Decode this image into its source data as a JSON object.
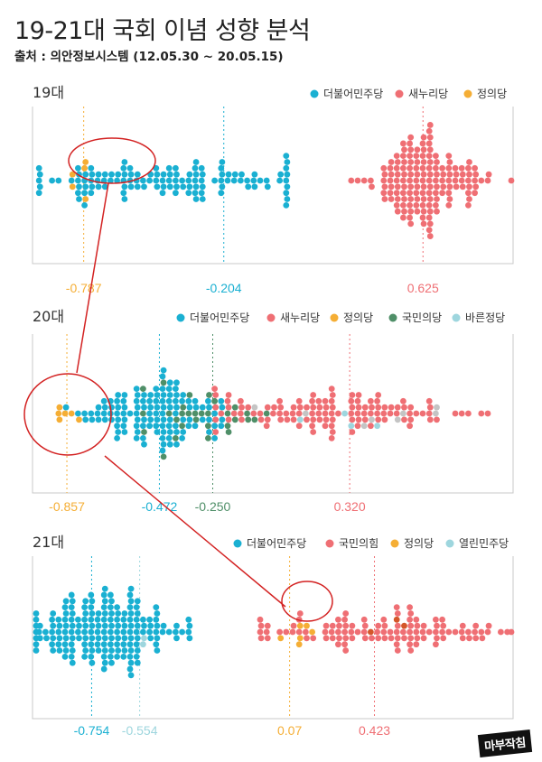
{
  "title": "19-21대 국회 이념 성향 분석",
  "source": "출처 : 의안정보시스템 (12.05.30 ~ 20.05.15)",
  "logo": "마부작침",
  "colors": {
    "blue": "#1ab0d2",
    "red": "#ef6f74",
    "orange": "#f5ae35",
    "green": "#4f8f68",
    "lightblue": "#9ed6de",
    "gray": "#c4c4c4",
    "darkorange": "#d4572a",
    "callout": "#d32222"
  },
  "chart_data": [
    {
      "type": "scatter",
      "panel": "19대",
      "xlim": [
        -1.0,
        1.0
      ],
      "legend": [
        {
          "name": "더불어민주당",
          "color": "#1ab0d2"
        },
        {
          "name": "새누리당",
          "color": "#ef6f74"
        },
        {
          "name": "정의당",
          "color": "#f5ae35"
        }
      ],
      "medians": [
        {
          "value": -0.787,
          "label": "-0.787",
          "color": "#f5ae35"
        },
        {
          "value": -0.204,
          "label": "-0.204",
          "color": "#1ab0d2"
        },
        {
          "value": 0.625,
          "label": "0.625",
          "color": "#ef6f74"
        }
      ],
      "groups": [
        {
          "color": "#1ab0d2",
          "center": -0.45,
          "spread": 0.3,
          "n": 120,
          "min": -0.97,
          "max": 0.06
        },
        {
          "color": "#f5ae35",
          "center": -0.78,
          "spread": 0.06,
          "n": 5,
          "min": -0.85,
          "max": -0.7
        },
        {
          "color": "#ef6f74",
          "center": 0.62,
          "spread": 0.13,
          "n": 150,
          "min": 0.26,
          "max": 1.0
        }
      ]
    },
    {
      "type": "scatter",
      "panel": "20대",
      "xlim": [
        -1.0,
        1.0
      ],
      "legend": [
        {
          "name": "더불어민주당",
          "color": "#1ab0d2"
        },
        {
          "name": "새누리당",
          "color": "#ef6f74"
        },
        {
          "name": "정의당",
          "color": "#f5ae35"
        },
        {
          "name": "국민의당",
          "color": "#4f8f68"
        },
        {
          "name": "바른정당",
          "color": "#9ed6de"
        }
      ],
      "medians": [
        {
          "value": -0.857,
          "label": "-0.857",
          "color": "#f5ae35"
        },
        {
          "value": -0.472,
          "label": "-0.472",
          "color": "#1ab0d2"
        },
        {
          "value": -0.25,
          "label": "-0.250",
          "color": "#4f8f68"
        },
        {
          "value": 0.32,
          "label": "0.320",
          "color": "#ef6f74"
        }
      ],
      "groups": [
        {
          "color": "#1ab0d2",
          "center": -0.5,
          "spread": 0.17,
          "n": 120,
          "min": -0.95,
          "max": -0.22
        },
        {
          "color": "#f5ae35",
          "center": -0.85,
          "spread": 0.05,
          "n": 6,
          "min": -0.93,
          "max": -0.75
        },
        {
          "color": "#4f8f68",
          "center": -0.3,
          "spread": 0.12,
          "n": 30,
          "min": -0.55,
          "max": 0.02
        },
        {
          "color": "#ef6f74",
          "center": 0.25,
          "spread": 0.28,
          "n": 115,
          "min": -0.25,
          "max": 0.98
        },
        {
          "color": "#c4c4c4",
          "center": 0.4,
          "spread": 0.3,
          "n": 8,
          "min": -0.1,
          "max": 0.9
        },
        {
          "color": "#9ed6de",
          "center": 0.2,
          "spread": 0.2,
          "n": 4,
          "min": 0.0,
          "max": 0.6
        }
      ]
    },
    {
      "type": "scatter",
      "panel": "21대",
      "xlim": [
        -1.0,
        1.0
      ],
      "legend": [
        {
          "name": "더불어민주당",
          "color": "#1ab0d2"
        },
        {
          "name": "국민의힘",
          "color": "#ef6f74"
        },
        {
          "name": "정의당",
          "color": "#f5ae35"
        },
        {
          "name": "열린민주당",
          "color": "#9ed6de"
        }
      ],
      "medians": [
        {
          "value": -0.754,
          "label": "-0.754",
          "color": "#1ab0d2"
        },
        {
          "value": -0.554,
          "label": "-0.554",
          "color": "#9ed6de"
        },
        {
          "value": 0.07,
          "label": "0.07",
          "color": "#f5ae35"
        },
        {
          "value": 0.423,
          "label": "0.423",
          "color": "#ef6f74"
        }
      ],
      "groups": [
        {
          "color": "#1ab0d2",
          "center": -0.72,
          "spread": 0.17,
          "n": 175,
          "min": -1.0,
          "max": -0.35
        },
        {
          "color": "#9ed6de",
          "center": -0.55,
          "spread": 0.05,
          "n": 2,
          "min": -0.6,
          "max": -0.4
        },
        {
          "color": "#f5ae35",
          "center": 0.1,
          "spread": 0.04,
          "n": 6,
          "min": 0.04,
          "max": 0.16
        },
        {
          "color": "#ef6f74",
          "center": 0.45,
          "spread": 0.28,
          "n": 105,
          "min": -0.05,
          "max": 1.0
        },
        {
          "color": "#d4572a",
          "center": 0.55,
          "spread": 0.15,
          "n": 3,
          "min": 0.4,
          "max": 0.75
        }
      ]
    }
  ]
}
